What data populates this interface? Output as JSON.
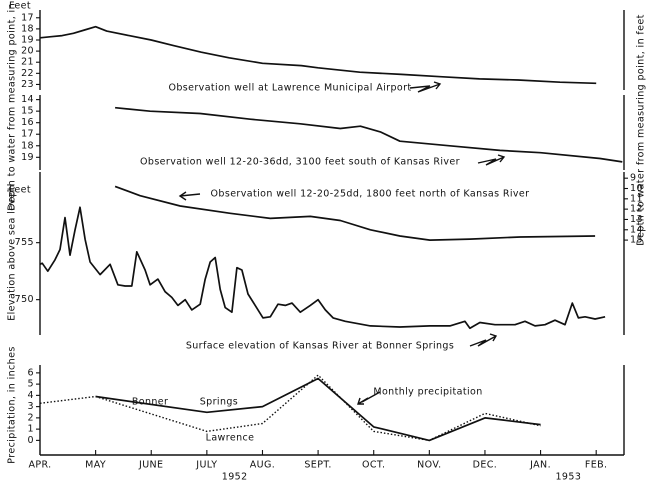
{
  "chart_data": [
    {
      "type": "line",
      "y_unit": "Feet",
      "y_label": "Depth to water from measuring point, in feet",
      "xlim": [
        0,
        10.5
      ],
      "ylim": [
        23.5,
        16.3
      ],
      "yticks": [
        17,
        18,
        19,
        20,
        21,
        22,
        23
      ],
      "series": [
        {
          "name": "Observation well at Lawrence Municipal Airport",
          "color": "#111111",
          "x": [
            0,
            0.2,
            0.4,
            0.6,
            0.8,
            1.0,
            1.2,
            1.6,
            2.0,
            2.4,
            2.9,
            3.4,
            4.0,
            4.7,
            5.0,
            5.75,
            6.5,
            7.2,
            7.9,
            8.6,
            9.35,
            10
          ],
          "values": [
            18.8,
            18.7,
            18.6,
            18.4,
            18.1,
            17.8,
            18.2,
            18.6,
            19.0,
            19.5,
            20.1,
            20.6,
            21.1,
            21.3,
            21.5,
            21.9,
            22.1,
            22.3,
            22.5,
            22.6,
            22.8,
            22.9
          ]
        }
      ]
    },
    {
      "type": "line",
      "xlim": [
        0,
        10.5
      ],
      "ylim": [
        20.1,
        13.6
      ],
      "yticks": [
        14,
        15,
        16,
        17,
        18,
        19
      ],
      "series": [
        {
          "name": "Observation well 12-20-36dd, 3100 feet south of Kansas River",
          "color": "#111111",
          "x": [
            1.35,
            1.98,
            2.88,
            3.78,
            4.68,
            5.4,
            5.76,
            6.12,
            6.47,
            7.37,
            8.27,
            9.0,
            10.07,
            10.47
          ],
          "values": [
            14.7,
            15.0,
            15.2,
            15.7,
            16.1,
            16.5,
            16.3,
            16.8,
            17.6,
            18.0,
            18.4,
            18.6,
            19.1,
            19.4
          ]
        }
      ]
    },
    {
      "type": "line",
      "y_unit": "Feet",
      "y_label": "Elevation above sea level",
      "y2_label": "Depth to water from measuring point, in feet",
      "xlim": [
        0,
        10.5
      ],
      "ylim": [
        746.9,
        761.2
      ],
      "yticks": [
        750,
        755
      ],
      "y2lim": [
        24.2,
        8.4
      ],
      "y2ticks": [
        9,
        10,
        11,
        12,
        13,
        14,
        15
      ],
      "series": [
        {
          "name": "Observation well 12-20-25dd, 1800 feet north of Kansas River",
          "color": "#111111",
          "axis": "y2",
          "x": [
            1.35,
            1.8,
            2.52,
            3.42,
            4.14,
            4.86,
            5.4,
            5.94,
            6.47,
            7.01,
            7.73,
            8.63,
            9.98
          ],
          "values": [
            9.8,
            10.7,
            11.7,
            12.4,
            12.9,
            12.7,
            13.1,
            14.0,
            14.6,
            15.0,
            14.9,
            14.7,
            14.6
          ]
        },
        {
          "name": "Surface elevation of Kansas River at Bonner Springs",
          "color": "#111111",
          "x": [
            0,
            0.04,
            0.14,
            0.27,
            0.36,
            0.45,
            0.54,
            0.63,
            0.72,
            0.81,
            0.9,
            1.08,
            1.26,
            1.4,
            1.53,
            1.65,
            1.74,
            1.89,
            1.98,
            2.12,
            2.25,
            2.37,
            2.48,
            2.61,
            2.73,
            2.88,
            2.97,
            3.06,
            3.15,
            3.24,
            3.33,
            3.45,
            3.54,
            3.63,
            3.74,
            3.87,
            4.01,
            4.14,
            4.28,
            4.41,
            4.53,
            4.68,
            4.86,
            5.0,
            5.13,
            5.27,
            5.49,
            5.94,
            6.47,
            7.01,
            7.37,
            7.64,
            7.73,
            7.91,
            8.18,
            8.54,
            8.72,
            8.9,
            9.08,
            9.26,
            9.44,
            9.57,
            9.68,
            9.8,
            9.98,
            10.16
          ],
          "values": [
            753.1,
            753.2,
            752.5,
            753.5,
            754.4,
            757.2,
            753.9,
            756.1,
            758.1,
            755.3,
            753.3,
            752.2,
            753.1,
            751.3,
            751.2,
            751.2,
            754.2,
            752.6,
            751.3,
            751.8,
            750.7,
            750.2,
            749.5,
            750.0,
            749.1,
            749.6,
            751.8,
            753.3,
            753.7,
            750.9,
            749.3,
            748.9,
            752.8,
            752.6,
            750.5,
            749.5,
            748.4,
            748.5,
            749.6,
            749.5,
            749.7,
            748.9,
            749.5,
            750.0,
            749.1,
            748.4,
            748.1,
            747.7,
            747.6,
            747.7,
            747.7,
            748.1,
            747.5,
            748.0,
            747.8,
            747.8,
            748.1,
            747.7,
            747.8,
            748.2,
            747.8,
            749.7,
            748.4,
            748.5,
            748.3,
            748.5
          ]
        }
      ]
    },
    {
      "type": "line",
      "y_label": "Precipitation, in inches",
      "annotation": "Monthly precipitation",
      "xlim": [
        0,
        10.5
      ],
      "ylim": [
        -1.3,
        6.7
      ],
      "yticks": [
        0,
        1,
        2,
        3,
        4,
        5,
        6
      ],
      "xticks": [
        {
          "value": 0,
          "label": "APR."
        },
        {
          "value": 1,
          "label": "MAY"
        },
        {
          "value": 2,
          "label": "JUNE"
        },
        {
          "value": 3,
          "label": "JULY"
        },
        {
          "value": 4,
          "label": "AUG."
        },
        {
          "value": 5,
          "label": "SEPT."
        },
        {
          "value": 6,
          "label": "OCT."
        },
        {
          "value": 7,
          "label": "NOV."
        },
        {
          "value": 8,
          "label": "DEC."
        },
        {
          "value": 9,
          "label": "JAN."
        },
        {
          "value": 10,
          "label": "FEB."
        }
      ],
      "year_labels": [
        {
          "value": 3.5,
          "label": "1952"
        },
        {
          "value": 9.5,
          "label": "1953"
        }
      ],
      "series": [
        {
          "name": "Bonner Springs",
          "color": "#111111",
          "style": "solid",
          "x": [
            1,
            3,
            4,
            5,
            6,
            7,
            8,
            9
          ],
          "values": [
            3.9,
            2.5,
            3.0,
            5.5,
            1.2,
            0,
            2.0,
            1.4
          ]
        },
        {
          "name": "Lawrence",
          "color": "#111111",
          "style": "dotted",
          "x": [
            0,
            1,
            3,
            4,
            5,
            6,
            7,
            8,
            9
          ],
          "values": [
            3.3,
            3.9,
            0.8,
            1.5,
            5.8,
            0.8,
            0,
            2.4,
            1.3
          ]
        }
      ]
    }
  ]
}
